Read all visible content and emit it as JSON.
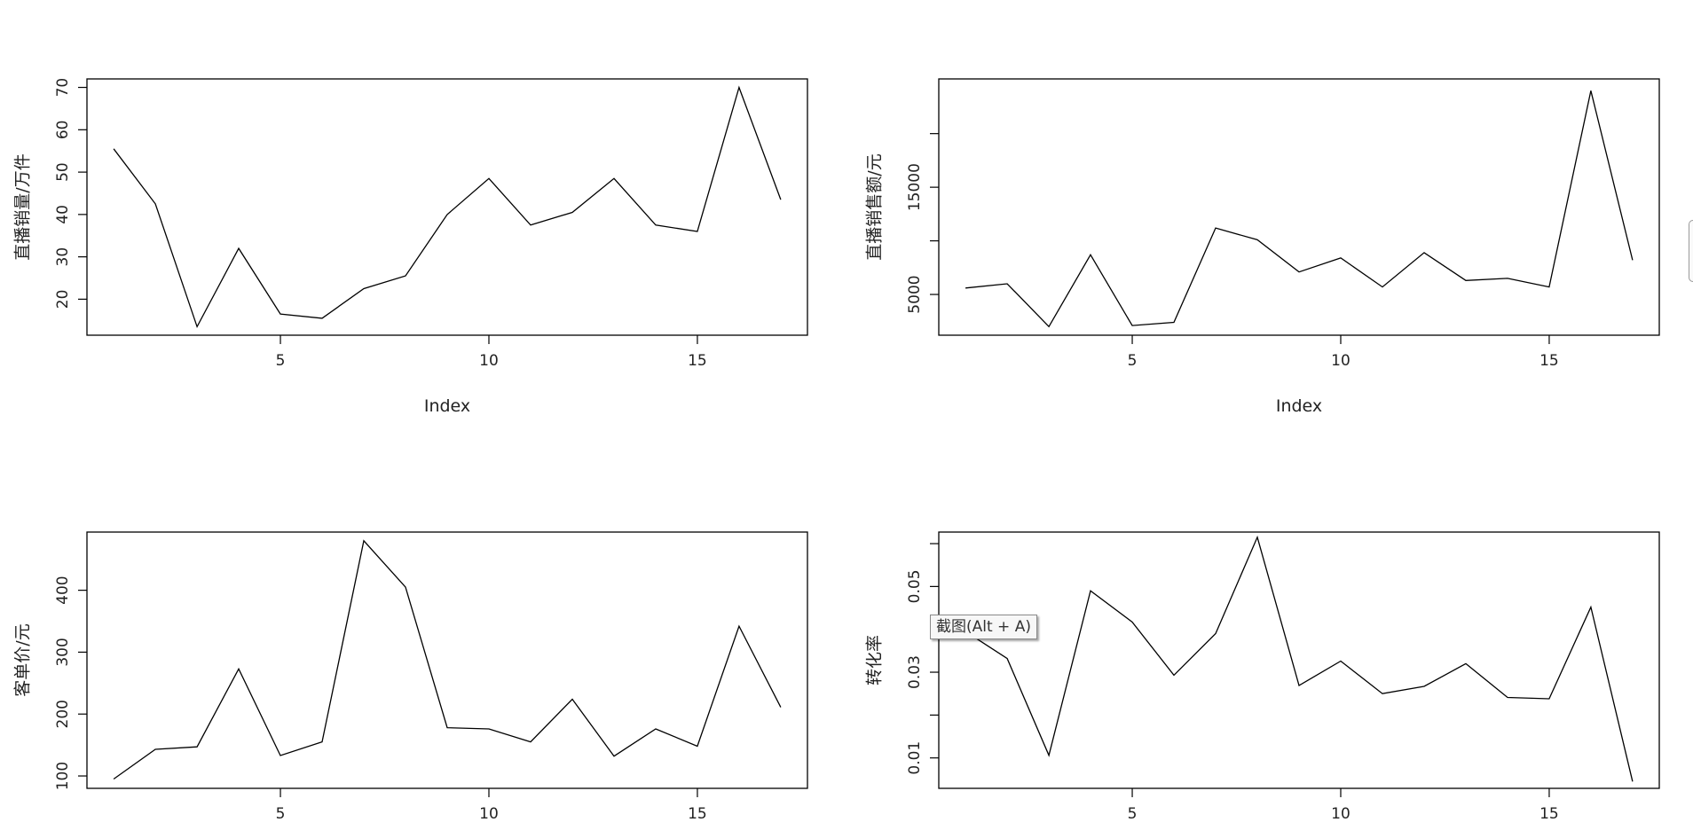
{
  "chart_data": [
    {
      "type": "line",
      "xlabel": "Index",
      "ylabel": "直播销量/万件",
      "x": [
        1,
        2,
        3,
        4,
        5,
        6,
        7,
        8,
        9,
        10,
        11,
        12,
        13,
        14,
        15,
        16,
        17
      ],
      "values": [
        55.5,
        42.5,
        13.5,
        32,
        16.5,
        15.5,
        22.5,
        25.5,
        40,
        48.5,
        37.5,
        40.5,
        48.5,
        37.5,
        36,
        70,
        43.5
      ],
      "xlim": [
        0.36,
        17.64
      ],
      "ylim": [
        11.5,
        72
      ],
      "xticks": [
        5,
        10,
        15
      ],
      "yticks": [
        20,
        30,
        40,
        50,
        60,
        70
      ]
    },
    {
      "type": "line",
      "xlabel": "Index",
      "ylabel": "直播销售额/元",
      "x": [
        1,
        2,
        3,
        4,
        5,
        6,
        7,
        8,
        9,
        10,
        11,
        12,
        13,
        14,
        15,
        16,
        17
      ],
      "values": [
        5600,
        6000,
        2000,
        8700,
        2100,
        2400,
        11200,
        10100,
        7100,
        8400,
        5700,
        8900,
        6300,
        6500,
        5700,
        24000,
        8200
      ],
      "xlim": [
        0.36,
        17.64
      ],
      "ylim": [
        1200,
        25100
      ],
      "xticks": [
        5,
        10,
        15
      ],
      "yticks": [
        5000,
        10000,
        15000,
        20000
      ],
      "ytick_labels": [
        "5000",
        "",
        "15000",
        ""
      ]
    },
    {
      "type": "line",
      "xlabel": "",
      "ylabel": "客单价/元",
      "x": [
        1,
        2,
        3,
        4,
        5,
        6,
        7,
        8,
        9,
        10,
        11,
        12,
        13,
        14,
        15,
        16,
        17
      ],
      "values": [
        95,
        143,
        147,
        273,
        133,
        155,
        480,
        405,
        178,
        176,
        155,
        224,
        132,
        176,
        148,
        342,
        211
      ],
      "xlim": [
        0.36,
        17.64
      ],
      "ylim": [
        80,
        494
      ],
      "xticks": [
        5,
        10,
        15
      ],
      "yticks": [
        100,
        200,
        300,
        400
      ]
    },
    {
      "type": "line",
      "xlabel": "",
      "ylabel": "转化率",
      "x": [
        1,
        2,
        3,
        4,
        5,
        6,
        7,
        8,
        9,
        10,
        11,
        12,
        13,
        14,
        15,
        16,
        17
      ],
      "values": [
        0.0395,
        0.0332,
        0.0106,
        0.049,
        0.0417,
        0.0293,
        0.039,
        0.0615,
        0.0269,
        0.0326,
        0.025,
        0.0267,
        0.032,
        0.0241,
        0.0238,
        0.0452,
        0.0045
      ],
      "xlim": [
        0.36,
        17.64
      ],
      "ylim": [
        0.0029,
        0.0627
      ],
      "xticks": [
        5,
        10,
        15
      ],
      "yticks": [
        0.01,
        0.02,
        0.03,
        0.04,
        0.05,
        0.06
      ],
      "ytick_labels": [
        "0.01",
        "",
        "0.03",
        "",
        "0.05",
        ""
      ]
    }
  ],
  "tooltip": {
    "text": "截图(Alt + A)"
  }
}
